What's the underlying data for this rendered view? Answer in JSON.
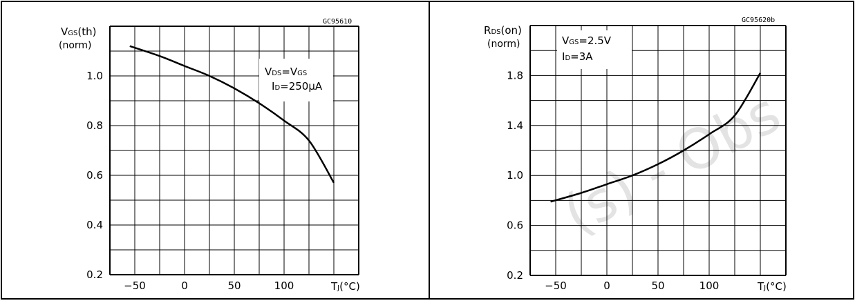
{
  "watermark": "(s) - Obs",
  "charts": {
    "left": {
      "code": "GC95610",
      "ylabel": {
        "main": "V",
        "sub": "GS",
        "rest": "(th)",
        "line2": "(norm)"
      },
      "xlabel": {
        "main": "T",
        "sub": "J",
        "rest": "(°C)"
      },
      "cond1": {
        "a": "V",
        "asub": "DS",
        "eq": "=V",
        "bsub": "GS"
      },
      "cond2": {
        "a": "I",
        "asub": "D",
        "rest": "=250μA"
      },
      "xticks": [
        "-50",
        "0",
        "50",
        "100"
      ],
      "yticks": [
        "0.2",
        "0.4",
        "0.6",
        "0.8",
        "1.0"
      ]
    },
    "right": {
      "code": "GC95620b",
      "ylabel": {
        "main": "R",
        "sub": "DS",
        "rest": "(on)",
        "line2": "(norm)"
      },
      "xlabel": {
        "main": "T",
        "sub": "J",
        "rest": "(°C)"
      },
      "cond1": {
        "a": "V",
        "asub": "GS",
        "rest": "=2.5V"
      },
      "cond2": {
        "a": "I",
        "asub": "D",
        "rest": "=3A"
      },
      "xticks": [
        "-50",
        "0",
        "50",
        "100"
      ],
      "yticks": [
        "0.2",
        "0.6",
        "1.0",
        "1.4",
        "1.8"
      ]
    }
  },
  "chart_data": [
    {
      "type": "line",
      "title": "",
      "xlabel": "TJ(°C)",
      "ylabel": "VGS(th) (norm)",
      "xlim": [
        -75,
        175
      ],
      "ylim": [
        0.2,
        1.2
      ],
      "series": [
        {
          "x": [
            -55,
            -25,
            0,
            25,
            50,
            75,
            100,
            125,
            150
          ],
          "y": [
            1.12,
            1.08,
            1.04,
            1.0,
            0.95,
            0.89,
            0.82,
            0.74,
            0.57
          ]
        }
      ]
    },
    {
      "type": "line",
      "title": "",
      "xlabel": "TJ(°C)",
      "ylabel": "RDS(on) (norm)",
      "xlim": [
        -75,
        175
      ],
      "ylim": [
        0.2,
        2.2
      ],
      "series": [
        {
          "x": [
            -55,
            -25,
            0,
            25,
            50,
            75,
            100,
            125,
            150
          ],
          "y": [
            0.79,
            0.86,
            0.93,
            1.0,
            1.09,
            1.2,
            1.33,
            1.48,
            1.82
          ]
        }
      ]
    }
  ]
}
